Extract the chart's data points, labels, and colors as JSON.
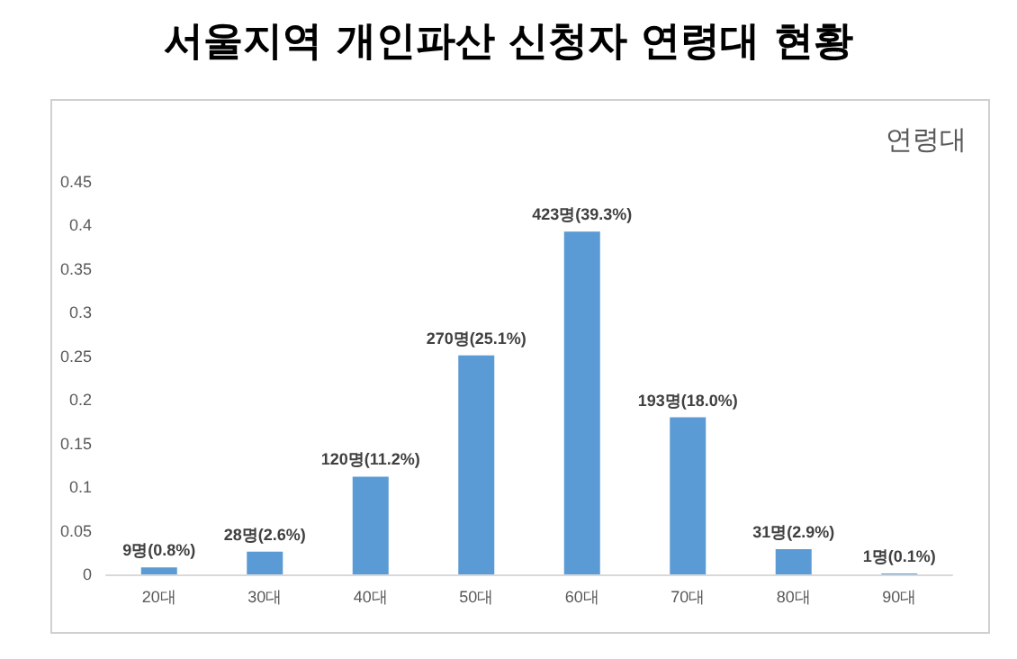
{
  "chart_data": {
    "type": "bar",
    "title": "서울지역 개인파산 신청자 연령대 현황",
    "categories": [
      "20대",
      "30대",
      "40대",
      "50대",
      "60대",
      "70대",
      "80대",
      "90대"
    ],
    "values": [
      0.008,
      0.026,
      0.112,
      0.251,
      0.393,
      0.18,
      0.029,
      0.001
    ],
    "value_labels": [
      "9명(0.8%)",
      "28명(2.6%)",
      "120명(11.2%)",
      "270명(25.1%)",
      "423명(39.3%)",
      "193명(18.0%)",
      "31명(2.9%)",
      "1명(0.1%)"
    ],
    "color": "#5b9bd5",
    "annotations": [
      "연령대"
    ],
    "ylim": [
      0,
      0.45
    ],
    "yticks": [
      0,
      0.05,
      0.1,
      0.15,
      0.2,
      0.25,
      0.3,
      0.35,
      0.4,
      0.45
    ],
    "grid": false
  }
}
